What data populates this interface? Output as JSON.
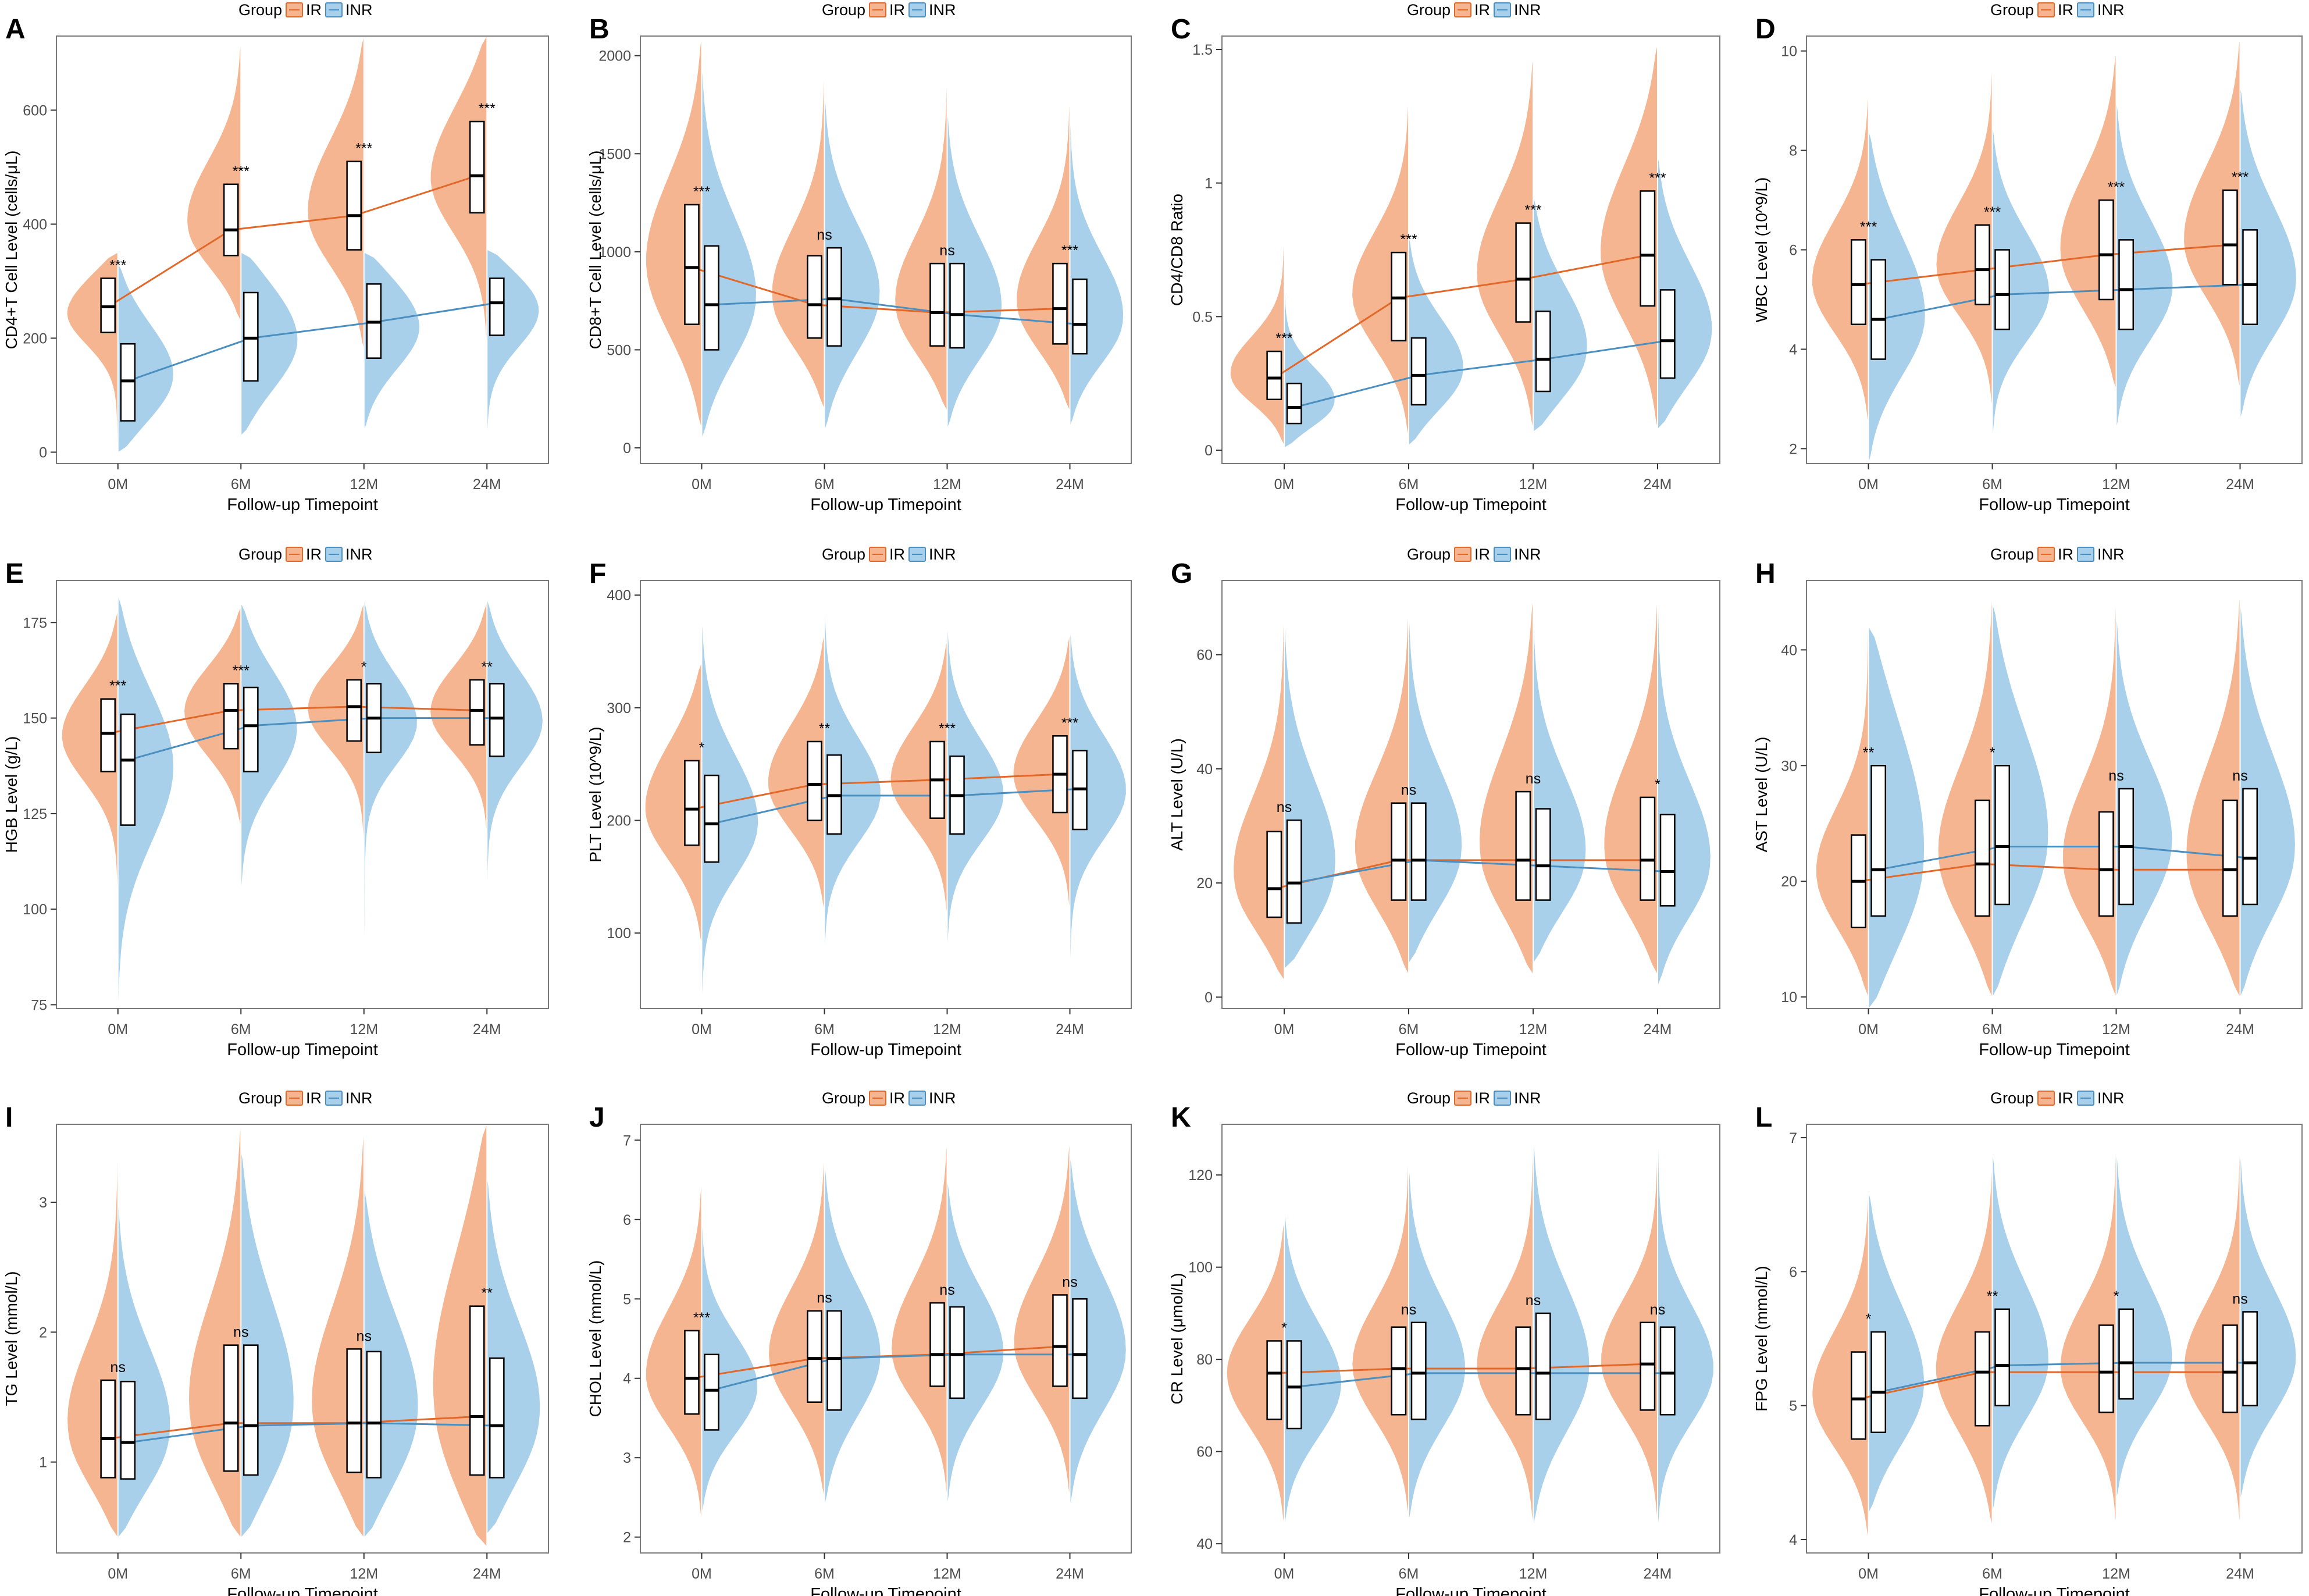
{
  "colors": {
    "ir": "#f5b590",
    "inr": "#a8d0ea",
    "ir_line": "#e2682a",
    "inr_line": "#4a8fbf",
    "frame": "#7a7a7a",
    "text": "#4d4d4d"
  },
  "legend": {
    "title": "Group",
    "ir_label": "IR",
    "inr_label": "INR"
  },
  "xlabel": "Follow-up Timepoint",
  "chart_data": [
    {
      "type": "split-violin",
      "panel": "A",
      "ylabel": "CD4+T Cell Level (cells/μL)",
      "ylim": [
        -20,
        730
      ],
      "yticks": [
        0,
        200,
        400,
        600
      ],
      "categories": [
        "0M",
        "6M",
        "12M",
        "24M"
      ],
      "series": [
        {
          "name": "IR",
          "median": [
            255,
            390,
            415,
            485
          ],
          "q1": [
            210,
            345,
            355,
            420
          ],
          "q3": [
            305,
            470,
            510,
            580
          ],
          "vmin": [
            0,
            230,
            180,
            190
          ],
          "vmax": [
            350,
            720,
            730,
            730
          ]
        },
        {
          "name": "INR",
          "median": [
            125,
            200,
            228,
            262
          ],
          "q1": [
            55,
            125,
            165,
            205
          ],
          "q3": [
            190,
            280,
            295,
            305
          ],
          "vmin": [
            0,
            30,
            40,
            30
          ],
          "vmax": [
            330,
            350,
            350,
            355
          ]
        }
      ],
      "significance": [
        "***",
        "***",
        "***",
        "***"
      ]
    },
    {
      "type": "split-violin",
      "panel": "B",
      "ylabel": "CD8+T Cell Level (cells/μL)",
      "ylim": [
        -80,
        2100
      ],
      "yticks": [
        0,
        500,
        1000,
        1500,
        2000
      ],
      "categories": [
        "0M",
        "6M",
        "12M",
        "24M"
      ],
      "series": [
        {
          "name": "IR",
          "median": [
            920,
            730,
            690,
            710
          ],
          "q1": [
            630,
            560,
            520,
            530
          ],
          "q3": [
            1240,
            980,
            940,
            940
          ],
          "vmin": [
            100,
            200,
            190,
            190
          ],
          "vmax": [
            2100,
            1950,
            1900,
            1800
          ]
        },
        {
          "name": "INR",
          "median": [
            730,
            760,
            680,
            630
          ],
          "q1": [
            500,
            520,
            510,
            480
          ],
          "q3": [
            1030,
            1020,
            940,
            860
          ],
          "vmin": [
            50,
            90,
            100,
            110
          ],
          "vmax": [
            1950,
            1800,
            1720,
            1700
          ]
        }
      ],
      "significance": [
        "***",
        "ns",
        "ns",
        "***"
      ]
    },
    {
      "type": "split-violin",
      "panel": "C",
      "ylabel": "CD4/CD8 Ratio",
      "ylim": [
        -0.05,
        1.55
      ],
      "yticks": [
        0.0,
        0.5,
        1.0,
        1.5
      ],
      "categories": [
        "0M",
        "6M",
        "12M",
        "24M"
      ],
      "series": [
        {
          "name": "IR",
          "median": [
            0.27,
            0.57,
            0.64,
            0.73
          ],
          "q1": [
            0.19,
            0.41,
            0.48,
            0.54
          ],
          "q3": [
            0.37,
            0.74,
            0.85,
            0.97
          ],
          "vmin": [
            0.02,
            0.05,
            0.08,
            0.08
          ],
          "vmax": [
            0.8,
            1.32,
            1.48,
            1.52
          ]
        },
        {
          "name": "INR",
          "median": [
            0.16,
            0.28,
            0.34,
            0.41
          ],
          "q1": [
            0.1,
            0.17,
            0.22,
            0.27
          ],
          "q3": [
            0.25,
            0.42,
            0.52,
            0.6
          ],
          "vmin": [
            0.01,
            0.02,
            0.07,
            0.08
          ],
          "vmax": [
            0.62,
            0.8,
            0.95,
            1.1
          ]
        }
      ],
      "significance": [
        "***",
        "***",
        "***",
        "***"
      ]
    },
    {
      "type": "split-violin",
      "panel": "D",
      "ylabel": "WBC Level (10^9/L)",
      "ylim": [
        1.7,
        10.3
      ],
      "yticks": [
        2,
        4,
        6,
        8,
        10
      ],
      "categories": [
        "0M",
        "6M",
        "12M",
        "24M"
      ],
      "series": [
        {
          "name": "IR",
          "median": [
            5.3,
            5.6,
            5.9,
            6.1
          ],
          "q1": [
            4.5,
            4.9,
            5.0,
            5.3
          ],
          "q3": [
            6.2,
            6.5,
            7.0,
            7.2
          ],
          "vmin": [
            2.5,
            2.8,
            3.2,
            3.2
          ],
          "vmax": [
            9.2,
            9.8,
            10.0,
            10.3
          ]
        },
        {
          "name": "INR",
          "median": [
            4.6,
            5.1,
            5.2,
            5.3
          ],
          "q1": [
            3.8,
            4.4,
            4.4,
            4.5
          ],
          "q3": [
            5.8,
            6.0,
            6.2,
            6.4
          ],
          "vmin": [
            1.7,
            2.2,
            2.4,
            2.6
          ],
          "vmax": [
            8.4,
            8.5,
            9.0,
            9.3
          ]
        }
      ],
      "significance": [
        "***",
        "***",
        "***",
        "***"
      ]
    },
    {
      "type": "split-violin",
      "panel": "E",
      "ylabel": "HGB Level (g/L)",
      "ylim": [
        74,
        186
      ],
      "yticks": [
        75,
        100,
        125,
        150,
        175
      ],
      "categories": [
        "0M",
        "6M",
        "12M",
        "24M"
      ],
      "series": [
        {
          "name": "IR",
          "median": [
            146,
            152,
            153,
            152
          ],
          "q1": [
            136,
            142,
            144,
            143
          ],
          "q3": [
            155,
            159,
            160,
            160
          ],
          "vmin": [
            103,
            122,
            117,
            120
          ],
          "vmax": [
            178,
            179,
            180,
            180
          ]
        },
        {
          "name": "INR",
          "median": [
            139,
            148,
            150,
            150
          ],
          "q1": [
            122,
            136,
            141,
            140
          ],
          "q3": [
            151,
            158,
            159,
            159
          ],
          "vmin": [
            74,
            105,
            88,
            105
          ],
          "vmax": [
            182,
            180,
            181,
            181
          ]
        }
      ],
      "significance": [
        "***",
        "***",
        "*",
        "**"
      ]
    },
    {
      "type": "split-violin",
      "panel": "F",
      "ylabel": "PLT Level (10^9/L)",
      "ylim": [
        33,
        413
      ],
      "yticks": [
        100,
        200,
        300,
        400
      ],
      "categories": [
        "0M",
        "6M",
        "12M",
        "24M"
      ],
      "series": [
        {
          "name": "IR",
          "median": [
            210,
            232,
            236,
            241
          ],
          "q1": [
            178,
            200,
            202,
            207
          ],
          "q3": [
            253,
            270,
            270,
            275
          ],
          "vmin": [
            90,
            120,
            115,
            120
          ],
          "vmax": [
            340,
            365,
            360,
            365
          ]
        },
        {
          "name": "INR",
          "median": [
            197,
            222,
            222,
            228
          ],
          "q1": [
            163,
            188,
            188,
            192
          ],
          "q3": [
            240,
            258,
            257,
            262
          ],
          "vmin": [
            35,
            80,
            85,
            60
          ],
          "vmax": [
            380,
            395,
            375,
            370
          ]
        }
      ],
      "significance": [
        "*",
        "**",
        "***",
        "***"
      ]
    },
    {
      "type": "split-violin",
      "panel": "G",
      "ylabel": "ALT Level (U/L)",
      "ylim": [
        -2,
        73
      ],
      "yticks": [
        0,
        20,
        40,
        60
      ],
      "categories": [
        "0M",
        "6M",
        "12M",
        "24M"
      ],
      "series": [
        {
          "name": "IR",
          "median": [
            19,
            24,
            24,
            24
          ],
          "q1": [
            14,
            17,
            17,
            17
          ],
          "q3": [
            29,
            34,
            36,
            35
          ],
          "vmin": [
            3,
            4,
            4,
            4
          ],
          "vmax": [
            68,
            68,
            70,
            70
          ]
        },
        {
          "name": "INR",
          "median": [
            20,
            24,
            23,
            22
          ],
          "q1": [
            13,
            17,
            17,
            16
          ],
          "q3": [
            31,
            34,
            33,
            32
          ],
          "vmin": [
            5,
            6,
            6,
            2
          ],
          "vmax": [
            66,
            67,
            66,
            70
          ]
        }
      ],
      "significance": [
        "ns",
        "ns",
        "ns",
        "*"
      ]
    },
    {
      "type": "split-violin",
      "panel": "H",
      "ylabel": "AST Level (U/L)",
      "ylim": [
        9,
        46
      ],
      "yticks": [
        10,
        20,
        30,
        40
      ],
      "categories": [
        "0M",
        "6M",
        "12M",
        "24M"
      ],
      "series": [
        {
          "name": "IR",
          "median": [
            20,
            21.5,
            21,
            21
          ],
          "q1": [
            16,
            17,
            17,
            17
          ],
          "q3": [
            24,
            27,
            26,
            27
          ],
          "vmin": [
            10,
            10,
            10,
            10
          ],
          "vmax": [
            44,
            45,
            45,
            45
          ]
        },
        {
          "name": "INR",
          "median": [
            21,
            23,
            23,
            22
          ],
          "q1": [
            17,
            18,
            18,
            18
          ],
          "q3": [
            30,
            30,
            28,
            28
          ],
          "vmin": [
            9,
            10,
            10,
            10
          ],
          "vmax": [
            42,
            44,
            43,
            44
          ]
        }
      ],
      "significance": [
        "**",
        "*",
        "ns",
        "ns"
      ]
    },
    {
      "type": "split-violin",
      "panel": "I",
      "ylabel": "TG Level (mmol/L)",
      "ylim": [
        0.3,
        3.6
      ],
      "yticks": [
        1,
        2,
        3
      ],
      "categories": [
        "0M",
        "6M",
        "12M",
        "24M"
      ],
      "series": [
        {
          "name": "IR",
          "median": [
            1.18,
            1.3,
            1.3,
            1.35
          ],
          "q1": [
            0.88,
            0.93,
            0.92,
            0.9
          ],
          "q3": [
            1.63,
            1.9,
            1.87,
            2.2
          ],
          "vmin": [
            0.42,
            0.42,
            0.42,
            0.35
          ],
          "vmax": [
            3.4,
            3.6,
            3.55,
            3.6
          ]
        },
        {
          "name": "INR",
          "median": [
            1.15,
            1.28,
            1.3,
            1.28
          ],
          "q1": [
            0.87,
            0.9,
            0.88,
            0.88
          ],
          "q3": [
            1.62,
            1.9,
            1.85,
            1.8
          ],
          "vmin": [
            0.42,
            0.42,
            0.42,
            0.45
          ],
          "vmax": [
            3.0,
            3.4,
            3.1,
            3.2
          ]
        }
      ],
      "significance": [
        "ns",
        "ns",
        "ns",
        "**"
      ]
    },
    {
      "type": "split-violin",
      "panel": "J",
      "ylabel": "CHOL Level (mmol/L)",
      "ylim": [
        1.8,
        7.2
      ],
      "yticks": [
        2,
        3,
        4,
        5,
        6,
        7
      ],
      "categories": [
        "0M",
        "6M",
        "12M",
        "24M"
      ],
      "series": [
        {
          "name": "IR",
          "median": [
            4.0,
            4.25,
            4.3,
            4.4
          ],
          "q1": [
            3.55,
            3.7,
            3.9,
            3.9
          ],
          "q3": [
            4.6,
            4.85,
            4.95,
            5.05
          ],
          "vmin": [
            2.2,
            2.5,
            2.5,
            2.5
          ],
          "vmax": [
            6.5,
            6.8,
            7.0,
            7.0
          ]
        },
        {
          "name": "INR",
          "median": [
            3.85,
            4.25,
            4.3,
            4.3
          ],
          "q1": [
            3.35,
            3.6,
            3.75,
            3.75
          ],
          "q3": [
            4.3,
            4.85,
            4.9,
            5.0
          ],
          "vmin": [
            2.3,
            2.4,
            2.4,
            2.4
          ],
          "vmax": [
            6.0,
            6.7,
            6.5,
            6.8
          ]
        }
      ],
      "significance": [
        "***",
        "ns",
        "ns",
        "ns"
      ]
    },
    {
      "type": "split-violin",
      "panel": "K",
      "ylabel": "CR Level (μmol/L)",
      "ylim": [
        38,
        131
      ],
      "yticks": [
        40,
        60,
        80,
        100,
        120
      ],
      "categories": [
        "0M",
        "6M",
        "12M",
        "24M"
      ],
      "series": [
        {
          "name": "IR",
          "median": [
            77,
            78,
            78,
            79
          ],
          "q1": [
            67,
            68,
            68,
            69
          ],
          "q3": [
            84,
            87,
            87,
            88
          ],
          "vmin": [
            44,
            46,
            44,
            45
          ],
          "vmax": [
            110,
            125,
            128,
            126
          ]
        },
        {
          "name": "INR",
          "median": [
            74,
            77,
            77,
            77
          ],
          "q1": [
            65,
            67,
            67,
            68
          ],
          "q3": [
            84,
            88,
            90,
            87
          ],
          "vmin": [
            44,
            45,
            44,
            43
          ],
          "vmax": [
            112,
            122,
            128,
            130
          ]
        }
      ],
      "significance": [
        "*",
        "ns",
        "ns",
        "ns"
      ]
    },
    {
      "type": "split-violin",
      "panel": "L",
      "ylabel": "FPG Level (mmol/L)",
      "ylim": [
        3.9,
        7.1
      ],
      "yticks": [
        4,
        5,
        6,
        7
      ],
      "categories": [
        "0M",
        "6M",
        "12M",
        "24M"
      ],
      "series": [
        {
          "name": "IR",
          "median": [
            5.05,
            5.25,
            5.25,
            5.25
          ],
          "q1": [
            4.75,
            4.85,
            4.95,
            4.95
          ],
          "q3": [
            5.4,
            5.55,
            5.6,
            5.6
          ],
          "vmin": [
            4.0,
            4.1,
            4.1,
            4.1
          ],
          "vmax": [
            6.6,
            6.8,
            7.0,
            7.0
          ]
        },
        {
          "name": "INR",
          "median": [
            5.1,
            5.3,
            5.32,
            5.32
          ],
          "q1": [
            4.8,
            5.0,
            5.05,
            5.0
          ],
          "q3": [
            5.55,
            5.72,
            5.72,
            5.7
          ],
          "vmin": [
            4.2,
            4.2,
            4.3,
            4.3
          ],
          "vmax": [
            6.6,
            6.9,
            6.9,
            6.9
          ]
        }
      ],
      "significance": [
        "*",
        "**",
        "*",
        "ns"
      ]
    }
  ]
}
